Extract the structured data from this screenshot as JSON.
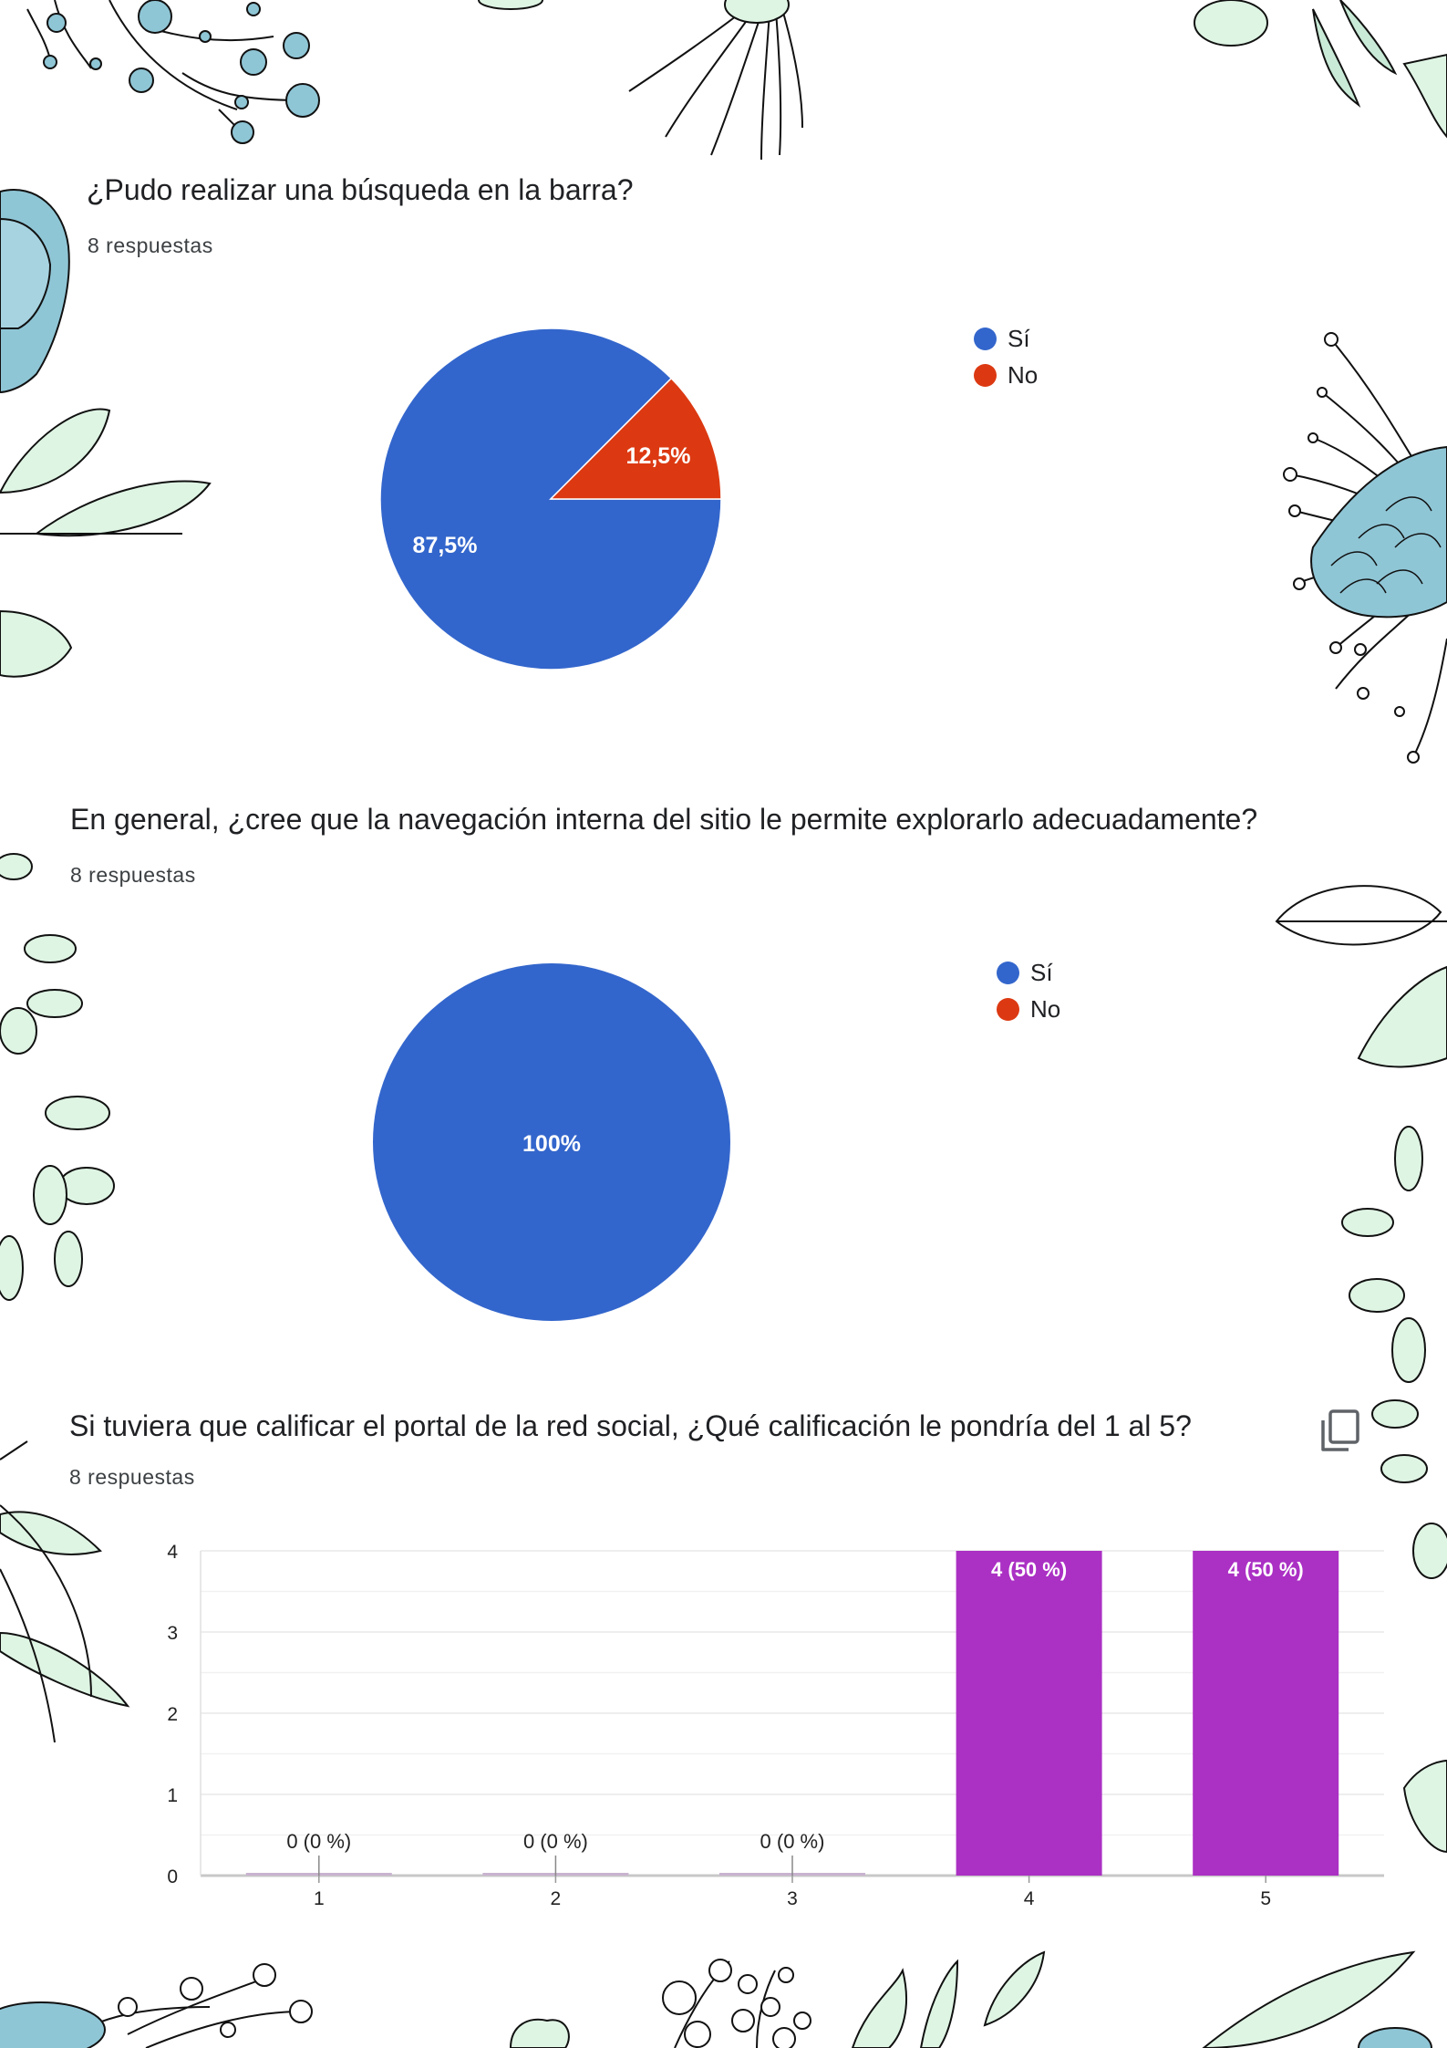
{
  "colors": {
    "si": "#3366cc",
    "no": "#dc3912",
    "bar": "#ab30c4",
    "deco_blue": "#8fc6d6",
    "deco_green": "#dff5e4"
  },
  "questions": [
    {
      "title": "¿Pudo realizar una búsqueda en la barra?",
      "responses": "8 respuestas"
    },
    {
      "title": "En general, ¿cree que la navegación interna del sitio le permite explorarlo adecuadamente?",
      "responses": "8 respuestas"
    },
    {
      "title": "Si tuviera que calificar el portal de la red social, ¿Qué calificación le pondría del 1 al 5?",
      "responses": "8 respuestas",
      "icon": "copy-icon"
    }
  ],
  "legend": {
    "si": "Sí",
    "no": "No"
  },
  "chart_data": [
    {
      "type": "pie",
      "title": "¿Pudo realizar una búsqueda en la barra?",
      "slices": [
        {
          "label": "Sí",
          "value": 87.5,
          "display": "87,5%"
        },
        {
          "label": "No",
          "value": 12.5,
          "display": "12,5%"
        }
      ],
      "legend_position": "right"
    },
    {
      "type": "pie",
      "title": "En general, ¿cree que la navegación interna del sitio le permite explorarlo adecuadamente?",
      "slices": [
        {
          "label": "Sí",
          "value": 100,
          "display": "100%"
        },
        {
          "label": "No",
          "value": 0,
          "display": ""
        }
      ],
      "legend_position": "right"
    },
    {
      "type": "bar",
      "title": "Si tuviera que calificar el portal de la red social, ¿Qué calificación le pondría del 1 al 5?",
      "categories": [
        "1",
        "2",
        "3",
        "4",
        "5"
      ],
      "values": [
        0,
        0,
        0,
        4,
        4
      ],
      "data_labels": [
        "0 (0 %)",
        "0 (0 %)",
        "0 (0 %)",
        "4 (50 %)",
        "4 (50 %)"
      ],
      "yticks": [
        "0",
        "1",
        "2",
        "3",
        "4"
      ],
      "ylim": [
        0,
        4
      ],
      "grid": true
    }
  ]
}
